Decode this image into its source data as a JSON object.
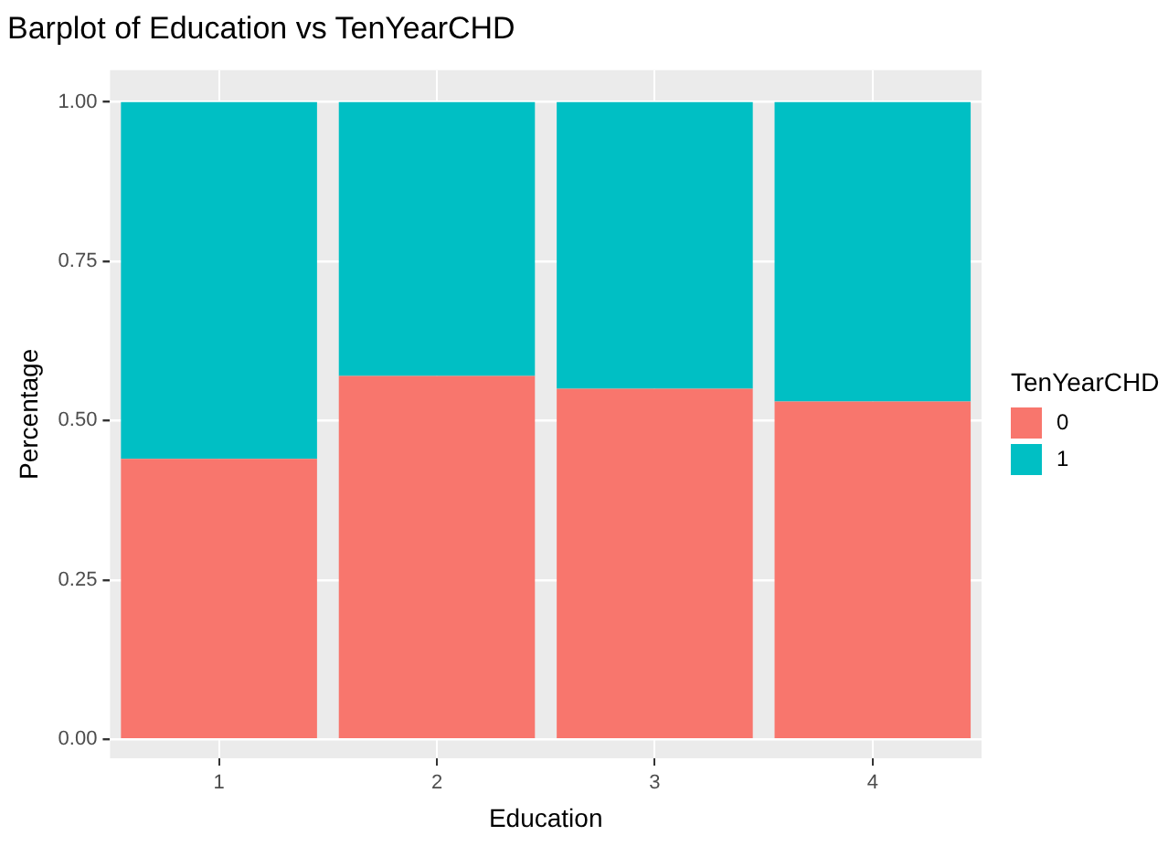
{
  "chart_data": {
    "type": "bar",
    "title": "Barplot of Education vs TenYearCHD",
    "xlabel": "Education",
    "ylabel": "Percentage",
    "legend_title": "TenYearCHD",
    "categories": [
      "1",
      "2",
      "3",
      "4"
    ],
    "series": [
      {
        "name": "0",
        "color": "#f8766d",
        "values": [
          0.44,
          0.57,
          0.55,
          0.53
        ]
      },
      {
        "name": "1",
        "color": "#00bfc4",
        "values": [
          0.56,
          0.43,
          0.45,
          0.47
        ]
      }
    ],
    "stacked": true,
    "ylim": [
      -0.03,
      1.05
    ],
    "yticks": [
      {
        "value": 0,
        "label": "0.00"
      },
      {
        "value": 0.25,
        "label": "0.25"
      },
      {
        "value": 0.5,
        "label": "0.50"
      },
      {
        "value": 0.75,
        "label": "0.75"
      },
      {
        "value": 1,
        "label": "1.00"
      }
    ],
    "grid": true,
    "legend": "right"
  }
}
